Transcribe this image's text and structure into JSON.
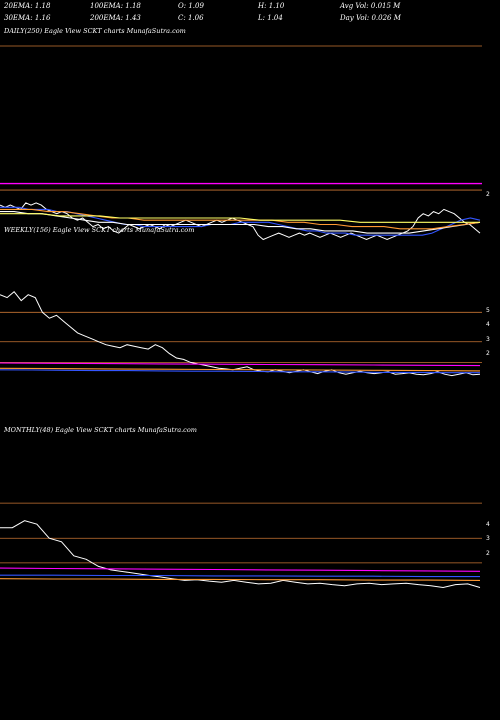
{
  "header": {
    "row1": [
      {
        "label": "20EMA:",
        "value": "1.18"
      },
      {
        "label": "100EMA:",
        "value": "1.18"
      },
      {
        "label": "O:",
        "value": "1.09"
      },
      {
        "label": "H:",
        "value": "1.10"
      },
      {
        "label": "Avg Vol:",
        "value": "0.015 M"
      }
    ],
    "row2": [
      {
        "label": "30EMA:",
        "value": "1.16"
      },
      {
        "label": "200EMA:",
        "value": "1.43"
      },
      {
        "label": "C:",
        "value": "1.06"
      },
      {
        "label": "L:",
        "value": "1.04"
      },
      {
        "label": "Day Vol:",
        "value": "0.026  M"
      }
    ]
  },
  "chart_data": [
    {
      "type": "line",
      "title": "DAILY(250) Eagle   View  SCKT charts MunafaSutra.com",
      "y_ticks": [
        "2"
      ],
      "series": [
        {
          "color": "#ffffff",
          "values": [
            1.26,
            1.25,
            1.26,
            1.25,
            1.24,
            1.27,
            1.26,
            1.27,
            1.26,
            1.24,
            1.23,
            1.22,
            1.23,
            1.22,
            1.2,
            1.19,
            1.2,
            1.18,
            1.16,
            1.17,
            1.15,
            1.16,
            1.14,
            1.13,
            1.15,
            1.17,
            1.16,
            1.15,
            1.16,
            1.17,
            1.16,
            1.15,
            1.17,
            1.16,
            1.17,
            1.18,
            1.19,
            1.18,
            1.17,
            1.16,
            1.17,
            1.18,
            1.19,
            1.18,
            1.19,
            1.2,
            1.19,
            1.18,
            1.17,
            1.16,
            1.12,
            1.1,
            1.11,
            1.12,
            1.13,
            1.12,
            1.11,
            1.12,
            1.13,
            1.12,
            1.13,
            1.12,
            1.11,
            1.12,
            1.13,
            1.12,
            1.11,
            1.12,
            1.13,
            1.12,
            1.11,
            1.1,
            1.11,
            1.12,
            1.11,
            1.1,
            1.11,
            1.12,
            1.13,
            1.14,
            1.16,
            1.2,
            1.22,
            1.21,
            1.23,
            1.22,
            1.24,
            1.23,
            1.22,
            1.2,
            1.18,
            1.17,
            1.15,
            1.13
          ]
        },
        {
          "color": "#3355ff",
          "values": [
            1.25,
            1.25,
            1.25,
            1.24,
            1.24,
            1.24,
            1.23,
            1.23,
            1.22,
            1.21,
            1.2,
            1.19,
            1.18,
            1.17,
            1.17,
            1.16,
            1.16,
            1.16,
            1.16,
            1.16,
            1.16,
            1.16,
            1.17,
            1.17,
            1.17,
            1.18,
            1.18,
            1.18,
            1.18,
            1.17,
            1.16,
            1.15,
            1.14,
            1.14,
            1.13,
            1.13,
            1.13,
            1.12,
            1.12,
            1.12,
            1.12,
            1.12,
            1.12,
            1.12,
            1.12,
            1.13,
            1.15,
            1.17,
            1.19,
            1.2,
            1.19
          ]
        },
        {
          "color": "#ffffff",
          "values": [
            1.23,
            1.23,
            1.22,
            1.22,
            1.21,
            1.2,
            1.19,
            1.18,
            1.18,
            1.17,
            1.17,
            1.17,
            1.17,
            1.17,
            1.17,
            1.17,
            1.17,
            1.17,
            1.17,
            1.16,
            1.16,
            1.15,
            1.15,
            1.14,
            1.14,
            1.14,
            1.13,
            1.13,
            1.13,
            1.13,
            1.14,
            1.15,
            1.16,
            1.17,
            1.18
          ]
        },
        {
          "color": "#ff9933",
          "values": [
            1.24,
            1.24,
            1.24,
            1.23,
            1.23,
            1.22,
            1.21,
            1.2,
            1.2,
            1.19,
            1.19,
            1.19,
            1.19,
            1.19,
            1.19,
            1.19,
            1.19,
            1.19,
            1.18,
            1.18,
            1.17,
            1.17,
            1.16,
            1.16,
            1.16,
            1.15,
            1.15,
            1.15,
            1.16,
            1.17,
            1.18
          ]
        },
        {
          "color": "#ffff66",
          "values": [
            1.22,
            1.22,
            1.22,
            1.21,
            1.21,
            1.21,
            1.2,
            1.2,
            1.2,
            1.2,
            1.2,
            1.2,
            1.2,
            1.19,
            1.19,
            1.19,
            1.19,
            1.19,
            1.18,
            1.18,
            1.18,
            1.18,
            1.18,
            1.18,
            1.18
          ]
        }
      ],
      "levels": [
        {
          "color": "#ff00ff",
          "value": 1.36
        },
        {
          "color": "#c87533",
          "value": 1.33
        },
        {
          "color": "#c87533",
          "value": 2.0
        }
      ]
    },
    {
      "type": "line",
      "title": "WEEKLY(156) Eagle   View  SCKT charts MunafaSutra.com",
      "y_ticks": [
        "5",
        "4",
        "3",
        "2"
      ],
      "series": [
        {
          "color": "#ffffff",
          "values": [
            4.6,
            4.5,
            4.7,
            4.4,
            4.6,
            4.5,
            4.0,
            3.8,
            3.9,
            3.7,
            3.5,
            3.3,
            3.2,
            3.1,
            3.0,
            2.9,
            2.85,
            2.8,
            2.9,
            2.85,
            2.8,
            2.75,
            2.9,
            2.8,
            2.6,
            2.45,
            2.4,
            2.3,
            2.25,
            2.2,
            2.15,
            2.1,
            2.08,
            2.05,
            2.1,
            2.15,
            2.05,
            2.0,
            1.98,
            2.05,
            2.0,
            1.95,
            2.0,
            2.05,
            1.98,
            1.92,
            2.0,
            2.05,
            1.95,
            1.9,
            1.95,
            2.0,
            1.95,
            1.92,
            1.95,
            1.98,
            1.9,
            1.92,
            1.95,
            1.9,
            1.88,
            1.92,
            1.98,
            1.9,
            1.85,
            1.9,
            1.95,
            1.88,
            1.9
          ]
        },
        {
          "color": "#3355ff",
          "values": [
            2.05,
            2.04,
            2.03,
            2.02,
            2.02,
            2.01,
            2.0,
            2.0,
            1.99,
            1.98,
            1.98,
            1.97,
            1.96,
            1.96,
            1.95,
            1.95
          ]
        },
        {
          "color": "#ff00ff",
          "values": [
            2.28,
            2.27,
            2.26,
            2.25,
            2.24,
            2.23,
            2.22,
            2.21,
            2.2,
            2.19
          ]
        },
        {
          "color": "#ff9933",
          "values": [
            2.1,
            2.09,
            2.08,
            2.07,
            2.06,
            2.05,
            2.04,
            2.03,
            2.02,
            2.01
          ]
        }
      ],
      "levels": [
        {
          "color": "#c87533",
          "value": 4.0
        },
        {
          "color": "#c87533",
          "value": 3.0
        },
        {
          "color": "#c87533",
          "value": 2.3
        }
      ]
    },
    {
      "type": "line",
      "title": "MONTHLY(48) Eagle   View  SCKT charts MunafaSutra.com",
      "y_ticks": [
        "4",
        "3",
        "2"
      ],
      "series": [
        {
          "color": "#ffffff",
          "values": [
            3.3,
            3.3,
            3.5,
            3.4,
            3.0,
            2.9,
            2.5,
            2.4,
            2.2,
            2.1,
            2.05,
            2.0,
            1.95,
            1.9,
            1.85,
            1.8,
            1.82,
            1.78,
            1.75,
            1.8,
            1.75,
            1.7,
            1.72,
            1.8,
            1.75,
            1.7,
            1.72,
            1.68,
            1.65,
            1.7,
            1.72,
            1.68,
            1.7,
            1.72,
            1.68,
            1.65,
            1.6,
            1.68,
            1.7,
            1.6
          ]
        },
        {
          "color": "#3355ff",
          "values": [
            1.95,
            1.95,
            1.94,
            1.94,
            1.93,
            1.93,
            1.92,
            1.92,
            1.91,
            1.91
          ]
        },
        {
          "color": "#ff00ff",
          "values": [
            2.15,
            2.14,
            2.13,
            2.12,
            2.11,
            2.1,
            2.09,
            2.08,
            2.07,
            2.06
          ]
        },
        {
          "color": "#ff9933",
          "values": [
            1.85,
            1.84,
            1.84,
            1.83,
            1.83,
            1.82,
            1.82,
            1.81,
            1.81,
            1.8
          ]
        }
      ],
      "levels": [
        {
          "color": "#c87533",
          "value": 4.0
        },
        {
          "color": "#c87533",
          "value": 3.0
        },
        {
          "color": "#c87533",
          "value": 2.3
        }
      ]
    }
  ]
}
